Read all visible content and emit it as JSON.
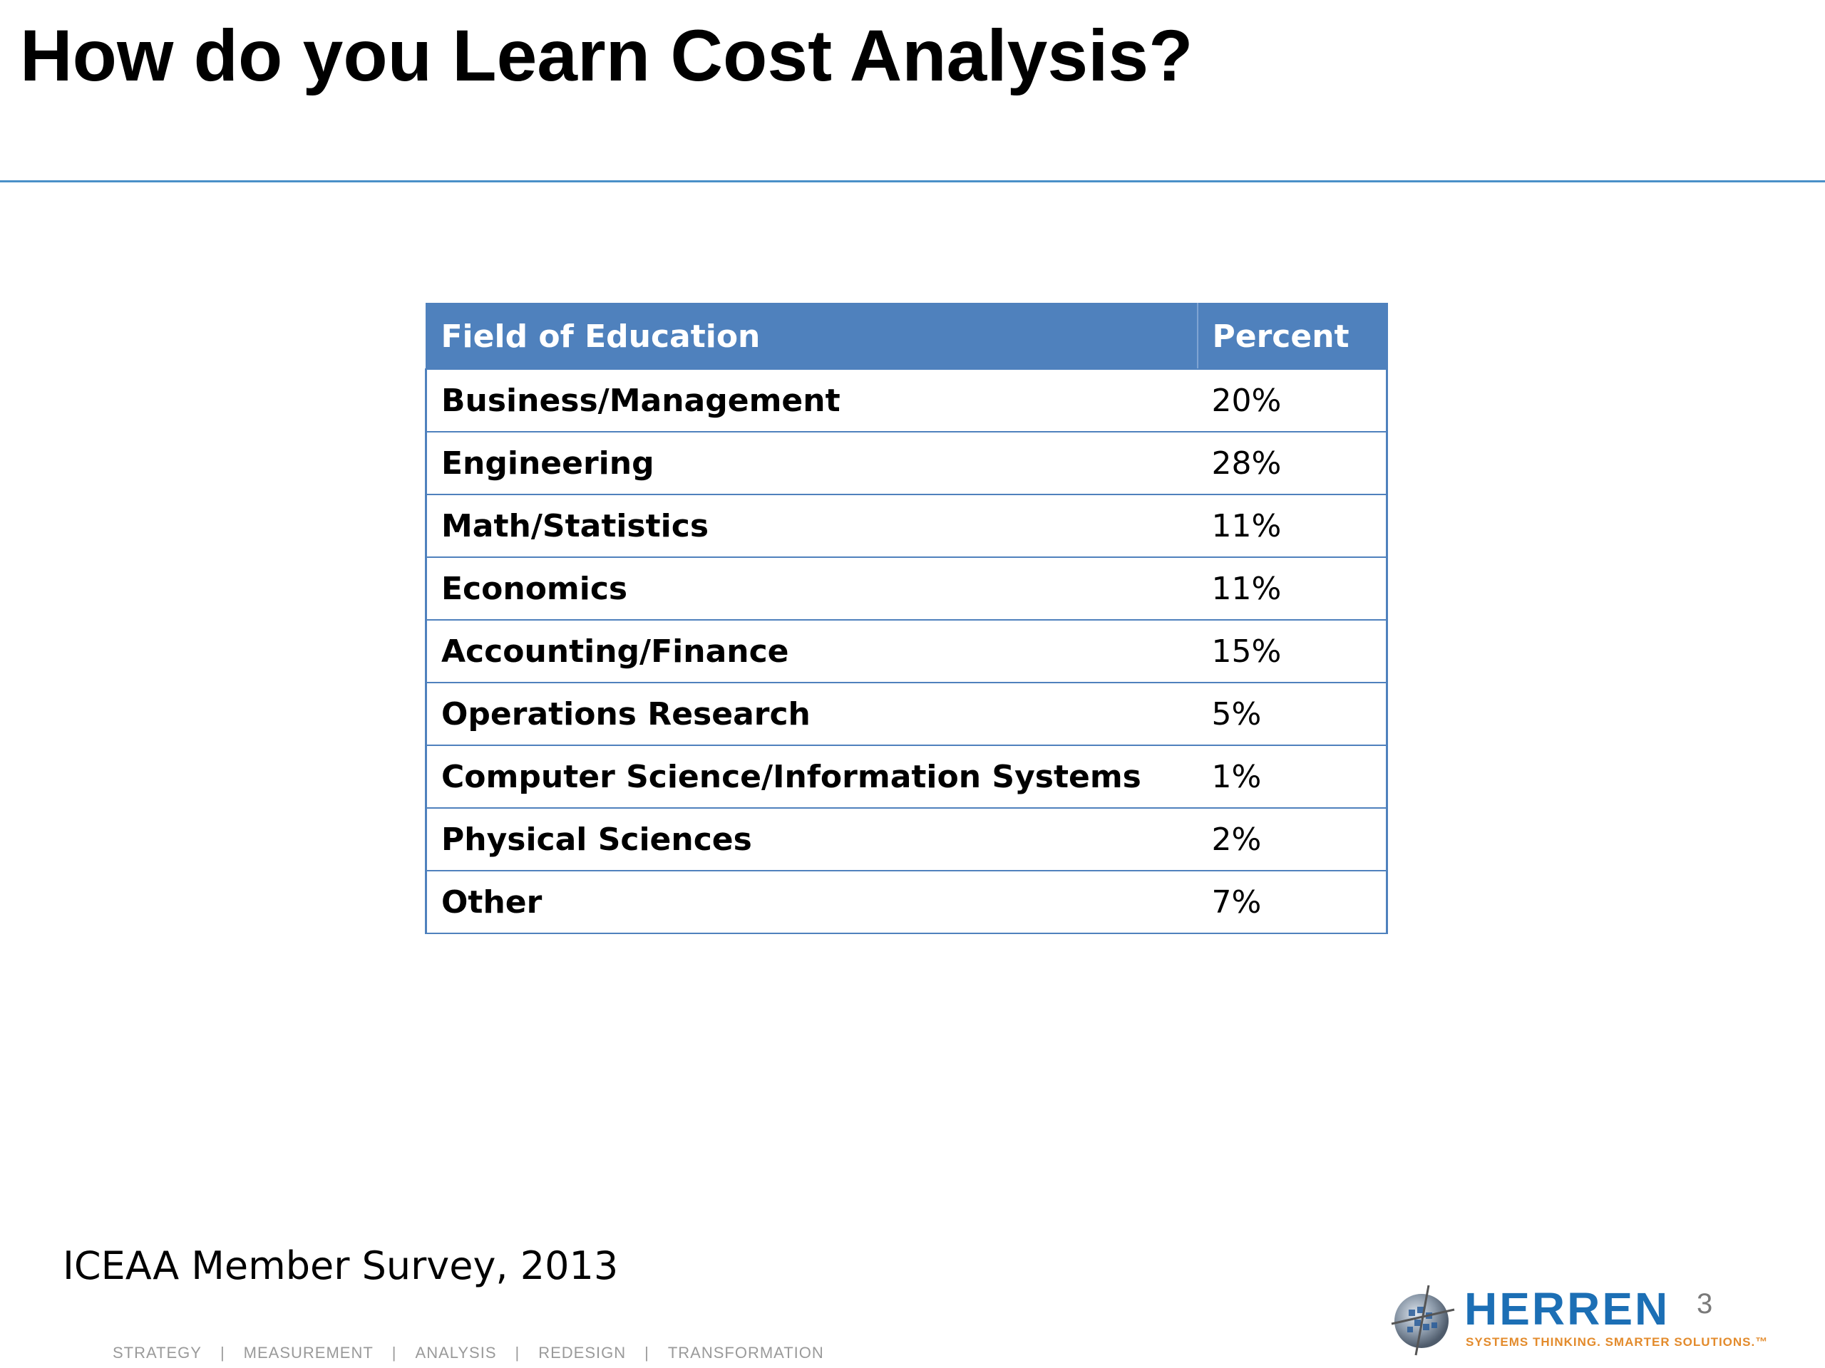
{
  "slide": {
    "title": "How do you Learn Cost Analysis?",
    "source": "ICEAA Member Survey, 2013",
    "page_number": "3"
  },
  "table": {
    "headers": [
      "Field of Education",
      "Percent"
    ],
    "rows": [
      {
        "field": "Business/Management",
        "percent": "20%"
      },
      {
        "field": "Engineering",
        "percent": "28%"
      },
      {
        "field": "Math/Statistics",
        "percent": "11%"
      },
      {
        "field": "Economics",
        "percent": "11%"
      },
      {
        "field": "Accounting/Finance",
        "percent": "15%"
      },
      {
        "field": "Operations Research",
        "percent": "5%"
      },
      {
        "field": "Computer Science/Information Systems",
        "percent": "1%"
      },
      {
        "field": "Physical Sciences",
        "percent": "2%"
      },
      {
        "field": "Other",
        "percent": "7%"
      }
    ]
  },
  "footer": {
    "nav": [
      "STRATEGY",
      "MEASUREMENT",
      "ANALYSIS",
      "REDESIGN",
      "TRANSFORMATION"
    ],
    "separator": "|"
  },
  "logo": {
    "name": "HERREN",
    "tagline": "SYSTEMS THINKING. SMARTER SOLUTIONS.™",
    "icon": "globe-icon"
  },
  "colors": {
    "header_fill": "#4f81bd",
    "rule": "#4a90c8",
    "logo_blue": "#1c6fb5",
    "logo_orange": "#e38b2c"
  }
}
